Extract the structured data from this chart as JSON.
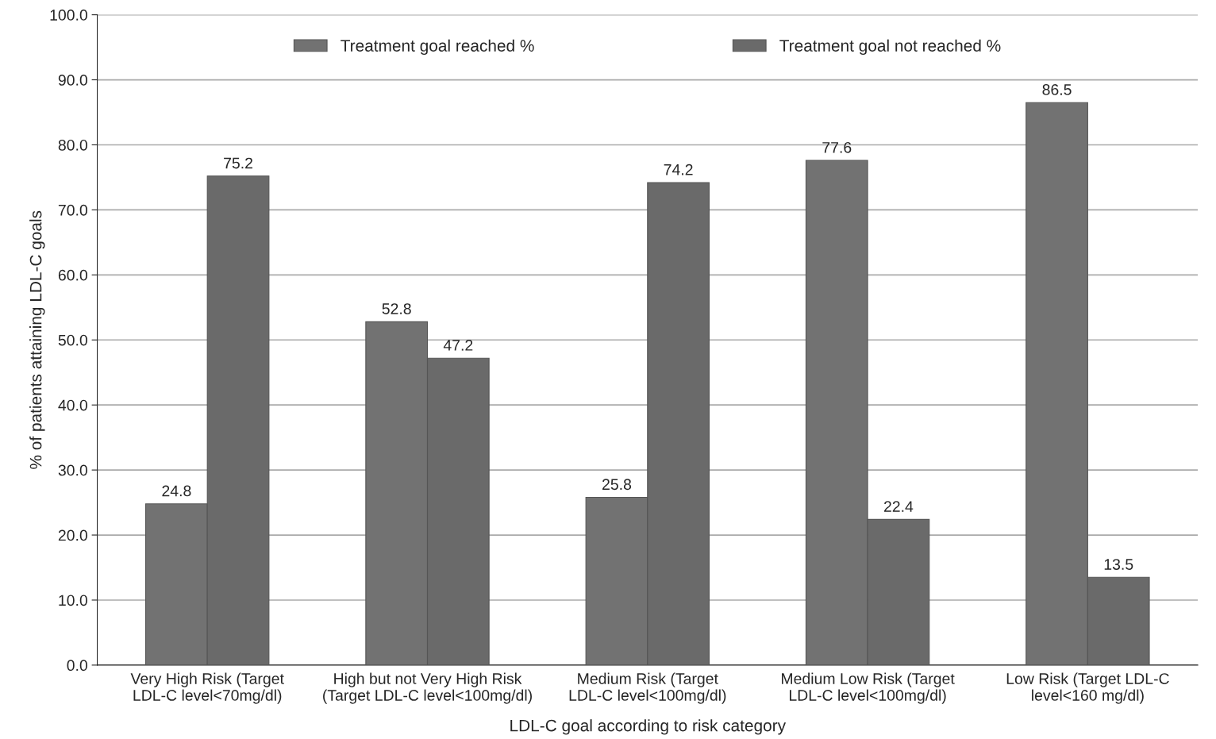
{
  "chart_data": {
    "type": "bar",
    "xlabel": "LDL-C goal according to risk category",
    "ylabel": "% of patients attaining LDL-C goals",
    "categories": [
      "Very High Risk (Target\nLDL-C level<70mg/dl)",
      "High but not Very High Risk\n(Target LDL-C level<100mg/dl)",
      "Medium Risk (Target\nLDL-C level<100mg/dl)",
      "Medium Low Risk (Target\nLDL-C level<100mg/dl)",
      "Low Risk (Target LDL-C\nlevel<160 mg/dl)"
    ],
    "series": [
      {
        "name": "Treatment goal reached %",
        "color": "#727272",
        "values": [
          24.8,
          52.8,
          25.8,
          77.6,
          86.5
        ]
      },
      {
        "name": "Treatment goal not reached %",
        "color": "#6a6a6a",
        "values": [
          75.2,
          47.2,
          74.2,
          22.4,
          13.5
        ]
      }
    ],
    "ylim": [
      0,
      100
    ],
    "yticks": [
      {
        "value": 0,
        "label": "0.0"
      },
      {
        "value": 10,
        "label": "10.0"
      },
      {
        "value": 20,
        "label": "20.0"
      },
      {
        "value": 30,
        "label": "30.0"
      },
      {
        "value": 40,
        "label": "40.0"
      },
      {
        "value": 50,
        "label": "50.0"
      },
      {
        "value": 60,
        "label": "60.0"
      },
      {
        "value": 70,
        "label": "70.0"
      },
      {
        "value": 80,
        "label": "80.0"
      },
      {
        "value": 90,
        "label": "90.0"
      },
      {
        "value": 100,
        "label": "100.0"
      }
    ],
    "grid": "y",
    "legend": "top",
    "data_labels": true
  }
}
